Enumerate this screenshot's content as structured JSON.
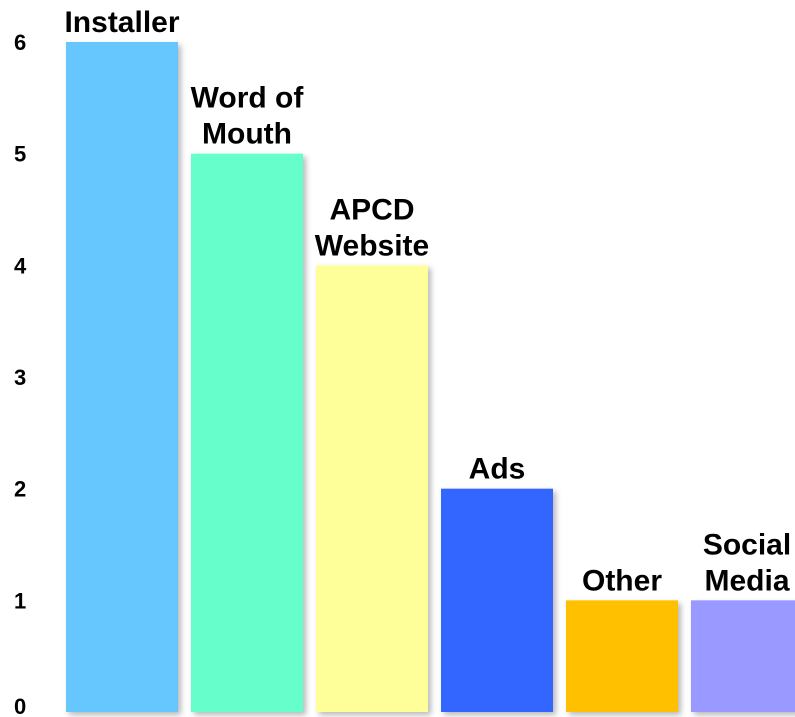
{
  "chart_data": {
    "type": "bar",
    "categories": [
      [
        "Installer"
      ],
      [
        "Word of",
        "Mouth"
      ],
      [
        "APCD",
        "Website"
      ],
      [
        "Ads"
      ],
      [
        "Other"
      ],
      [
        "Social",
        "Media"
      ]
    ],
    "values": [
      6,
      5,
      4,
      2,
      1,
      1
    ],
    "colors": [
      "#66c7ff",
      "#66ffcc",
      "#ffff99",
      "#3366ff",
      "#ffc000",
      "#9999ff"
    ],
    "yticks": [
      0,
      1,
      2,
      3,
      4,
      5,
      6
    ],
    "ylim": [
      0,
      6
    ],
    "title": "",
    "xlabel": "",
    "ylabel": "",
    "grid": false,
    "legend": "none"
  }
}
